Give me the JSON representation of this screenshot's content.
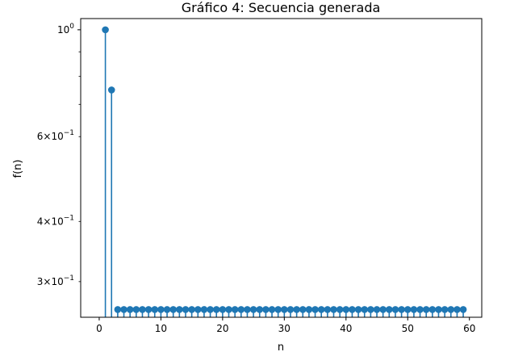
{
  "chart_data": {
    "type": "stem",
    "title": "Gráfico 4: Secuencia generada",
    "xlabel": "n",
    "ylabel": "f(n)",
    "xlim": [
      -3,
      62
    ],
    "ylim": [
      0.253,
      1.055
    ],
    "yscale": "log",
    "grid": false,
    "x_ticks": [
      0,
      10,
      20,
      30,
      40,
      50,
      60
    ],
    "x_tick_labels": [
      "0",
      "10",
      "20",
      "30",
      "40",
      "50",
      "60"
    ],
    "y_major_ticks": [
      1.0
    ],
    "y_major_labels": [
      "10^0"
    ],
    "y_minor_ticks": [
      0.3,
      0.4,
      0.6,
      0.7,
      0.8,
      0.9
    ],
    "y_minor_labels": [
      "3×10^−1",
      "4×10^−1",
      "6×10^−1",
      "",
      "",
      ""
    ],
    "baseline": 0.253,
    "color": "#1f77b4",
    "x": [
      1,
      2,
      3,
      4,
      5,
      6,
      7,
      8,
      9,
      10,
      11,
      12,
      13,
      14,
      15,
      16,
      17,
      18,
      19,
      20,
      21,
      22,
      23,
      24,
      25,
      26,
      27,
      28,
      29,
      30,
      31,
      32,
      33,
      34,
      35,
      36,
      37,
      38,
      39,
      40,
      41,
      42,
      43,
      44,
      45,
      46,
      47,
      48,
      49,
      50,
      51,
      52,
      53,
      54,
      55,
      56,
      57,
      58,
      59
    ],
    "y": [
      1.0,
      0.75,
      0.2625,
      0.2625,
      0.2625,
      0.2625,
      0.2625,
      0.2625,
      0.2625,
      0.2625,
      0.2625,
      0.2625,
      0.2625,
      0.2625,
      0.2625,
      0.2625,
      0.2625,
      0.2625,
      0.2625,
      0.2625,
      0.2625,
      0.2625,
      0.2625,
      0.2625,
      0.2625,
      0.2625,
      0.2625,
      0.2625,
      0.2625,
      0.2625,
      0.2625,
      0.2625,
      0.2625,
      0.2625,
      0.2625,
      0.2625,
      0.2625,
      0.2625,
      0.2625,
      0.2625,
      0.2625,
      0.2625,
      0.2625,
      0.2625,
      0.2625,
      0.2625,
      0.2625,
      0.2625,
      0.2625,
      0.2625,
      0.2625,
      0.2625,
      0.2625,
      0.2625,
      0.2625,
      0.2625,
      0.2625,
      0.2625,
      0.2625
    ]
  }
}
